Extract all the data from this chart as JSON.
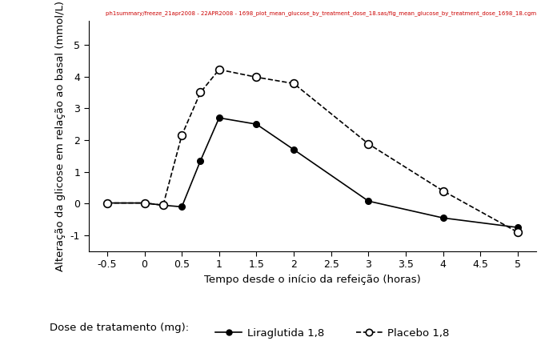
{
  "liraglutida_x": [
    -0.5,
    0.0,
    0.25,
    0.5,
    0.75,
    1.0,
    1.5,
    2.0,
    3.0,
    4.0,
    5.0
  ],
  "liraglutida_y": [
    0.02,
    0.02,
    -0.05,
    -0.1,
    1.35,
    2.7,
    2.5,
    1.7,
    0.08,
    -0.45,
    -0.75
  ],
  "placebo_x": [
    -0.5,
    0.0,
    0.25,
    0.5,
    0.75,
    1.0,
    1.5,
    2.0,
    3.0,
    4.0,
    5.0
  ],
  "placebo_y": [
    0.02,
    0.02,
    -0.05,
    2.15,
    3.5,
    4.22,
    3.98,
    3.78,
    1.88,
    0.4,
    -0.9
  ],
  "xlabel": "Tempo desde o início da refeição (horas)",
  "ylabel": "Alteração da glicose em relação ao basal (mmol/L)",
  "xlim": [
    -0.75,
    5.25
  ],
  "ylim": [
    -1.5,
    5.75
  ],
  "xticks": [
    -0.5,
    0.0,
    0.5,
    1.0,
    1.5,
    2.0,
    2.5,
    3.0,
    3.5,
    4.0,
    4.5,
    5.0
  ],
  "yticks": [
    -1,
    0,
    1,
    2,
    3,
    4,
    5
  ],
  "watermark": "ph1summary/freeze_21apr2008 - 22APR2008 - 1698_plot_mean_glucose_by_treatment_dose_18.sas/fig_mean_glucose_by_treatment_dose_1698_18.cgm",
  "legend_label1": "Liraglutida 1,8",
  "legend_label2": "Placebo 1,8",
  "legend_prefix": "Dose de tratamento (mg):",
  "background_color": "#ffffff",
  "line_color": "#000000",
  "watermark_color": "#cc0000",
  "watermark_fontsize": 5.0,
  "axis_fontsize": 9.5,
  "tick_fontsize": 9,
  "legend_fontsize": 9.5
}
